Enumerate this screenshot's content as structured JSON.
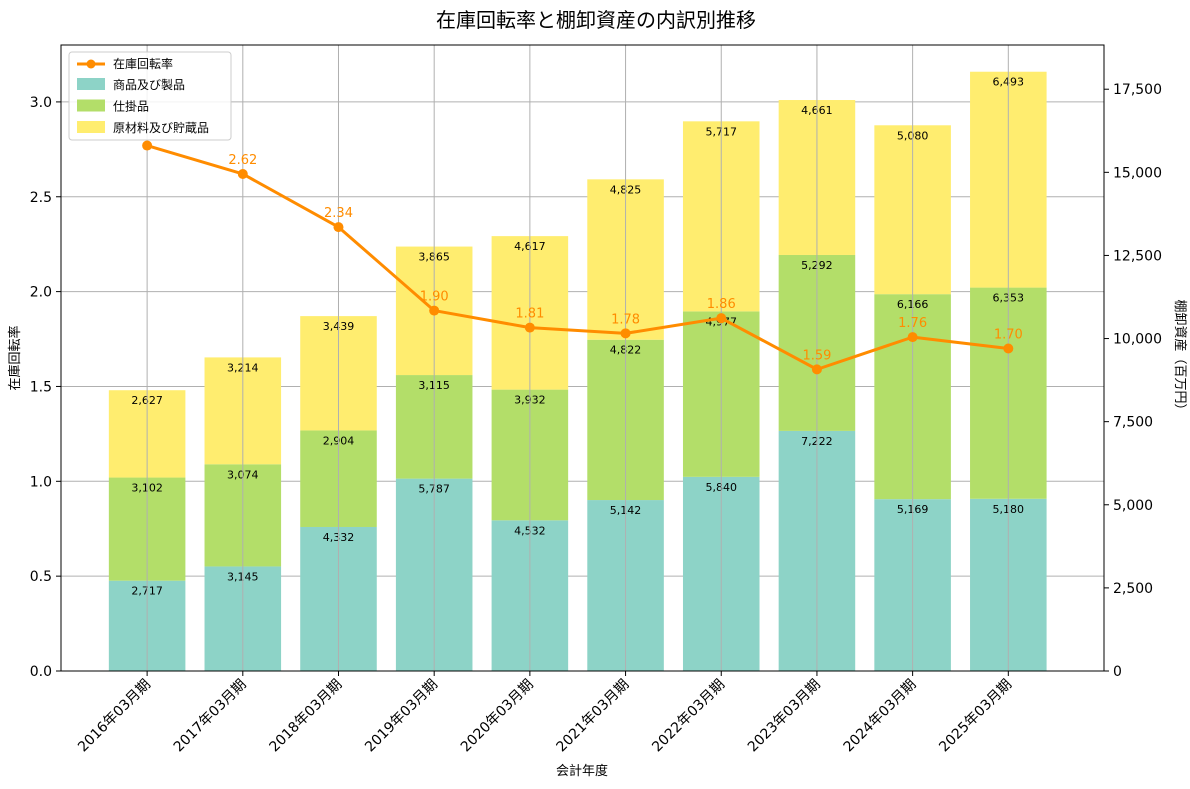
{
  "chart_data": {
    "type": "bar",
    "stacked": true,
    "title": "在庫回転率と棚卸資産の内訳別推移",
    "xlabel": "会計年度",
    "ylabel_left": "在庫回転率",
    "ylabel_right": "棚卸資産（百万円）",
    "ylim_left": [
      0,
      3.3
    ],
    "ylim_right": [
      0,
      18830
    ],
    "left_ticks": [
      "0.0",
      "0.5",
      "1.0",
      "1.5",
      "2.0",
      "2.5",
      "3.0"
    ],
    "left_tick_values": [
      0,
      0.5,
      1.0,
      1.5,
      2.0,
      2.5,
      3.0
    ],
    "right_ticks": [
      "0",
      "2,500",
      "5,000",
      "7,500",
      "10,000",
      "12,500",
      "15,000",
      "17,500"
    ],
    "right_tick_values": [
      0,
      2500,
      5000,
      7500,
      10000,
      12500,
      15000,
      17500
    ],
    "grid": true,
    "legend_position": "top-left",
    "categories": [
      "2016年03月期",
      "2017年03月期",
      "2018年03月期",
      "2019年03月期",
      "2020年03月期",
      "2021年03月期",
      "2022年03月期",
      "2023年03月期",
      "2024年03月期",
      "2025年03月期"
    ],
    "series": [
      {
        "name": "商品及び製品",
        "color": "#8dd3c7",
        "values": [
          2717,
          3145,
          4332,
          5787,
          4532,
          5142,
          5840,
          7222,
          5169,
          5180
        ],
        "labels": [
          "2,717",
          "3,145",
          "4,332",
          "5,787",
          "4,532",
          "5,142",
          "5,840",
          "7,222",
          "5,169",
          "5,180"
        ]
      },
      {
        "name": "仕掛品",
        "color": "#b3de69",
        "values": [
          3102,
          3074,
          2904,
          3115,
          3932,
          4822,
          4977,
          5292,
          6166,
          6353
        ],
        "labels": [
          "3,102",
          "3,074",
          "2,904",
          "3,115",
          "3,932",
          "4,822",
          "4,977",
          "5,292",
          "6,166",
          "6,353"
        ]
      },
      {
        "name": "原材料及び貯蔵品",
        "color": "#ffed6f",
        "values": [
          2627,
          3214,
          3439,
          3865,
          4617,
          4825,
          5717,
          4661,
          5080,
          6493
        ],
        "labels": [
          "2,627",
          "3,214",
          "3,439",
          "3,865",
          "4,617",
          "4,825",
          "5,717",
          "4,661",
          "5,080",
          "6,493"
        ]
      }
    ],
    "line": {
      "name": "在庫回転率",
      "color": "#ff8c00",
      "values": [
        2.77,
        2.62,
        2.34,
        1.9,
        1.81,
        1.78,
        1.86,
        1.59,
        1.76,
        1.7
      ],
      "labels": [
        "",
        "2.62",
        "2.34",
        "1.90",
        "1.81",
        "1.78",
        "1.86",
        "1.59",
        "1.76",
        "1.70"
      ]
    }
  }
}
